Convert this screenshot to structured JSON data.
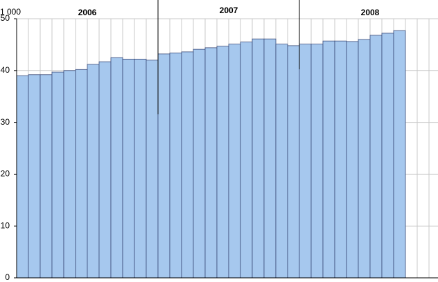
{
  "chart_data": {
    "type": "bar",
    "unit_label": "1 000",
    "year_labels": [
      "2006",
      "2007",
      "2008"
    ],
    "categories": [
      null,
      null,
      null,
      null,
      null,
      null,
      null,
      null,
      null,
      null,
      null,
      null,
      null,
      null,
      null,
      null,
      null,
      null,
      null,
      null,
      null,
      null,
      null,
      null,
      null,
      null,
      null,
      null,
      null,
      null,
      null,
      null,
      null,
      null,
      null,
      null
    ],
    "values": [
      39.0,
      39.2,
      39.2,
      39.7,
      40.0,
      40.2,
      41.2,
      41.7,
      42.5,
      42.2,
      42.2,
      42.0,
      43.2,
      43.4,
      43.6,
      44.1,
      44.4,
      44.7,
      45.1,
      45.5,
      46.1,
      46.1,
      45.1,
      44.8,
      45.1,
      45.1,
      45.7,
      45.7,
      45.6,
      46.0,
      46.8,
      47.2,
      47.7,
      null,
      null,
      null
    ],
    "color": "#a6c8ee",
    "ylim": [
      0,
      50
    ],
    "yticks": [
      0,
      10,
      20,
      30,
      40,
      50
    ],
    "grid": true
  }
}
